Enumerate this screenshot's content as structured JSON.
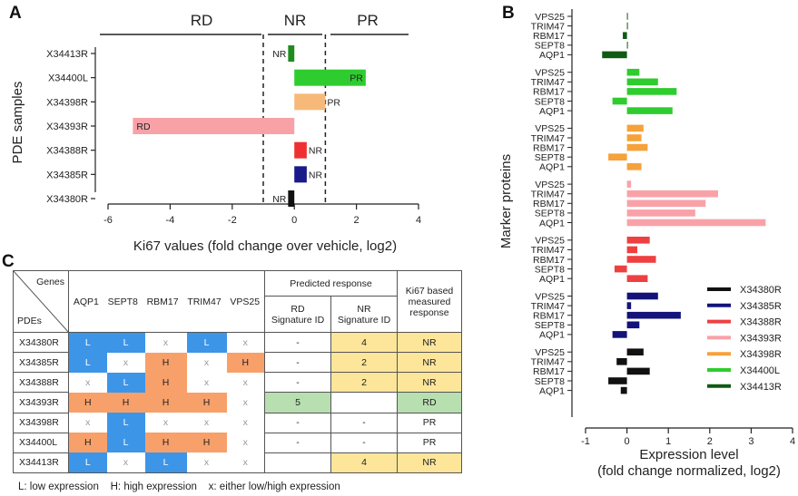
{
  "panels": {
    "a": {
      "letter": "A",
      "regions": [
        "RD",
        "NR",
        "PR"
      ],
      "ylabel": "PDE samples",
      "xlabel": "Ki67 values (fold change over vehicle, log2)"
    },
    "b": {
      "letter": "B",
      "ylabel": "Marker proteins",
      "xlabel_line1": "Expression level",
      "xlabel_line2": "(fold change normalized, log2)"
    },
    "c": {
      "letter": "C",
      "genes_label": "Genes",
      "pdes_label": "PDEs",
      "gene_columns": [
        "AQP1",
        "SEPT8",
        "RBM17",
        "TRIM47",
        "VPS25"
      ],
      "predicted_header": "Predicted response",
      "rd_sig_line1": "RD",
      "rd_sig_line2": "Signature ID",
      "nr_sig_line1": "NR",
      "nr_sig_line2": "Signature ID",
      "ki67_line1": "Ki67 based",
      "ki67_line2": "measured",
      "ki67_line3": "response",
      "legend": "L: low expression    H: high expression    x: either low/high expression"
    }
  },
  "chart_data": [
    {
      "type": "bar",
      "orientation": "horizontal",
      "panel": "A",
      "title": "",
      "categories": [
        "X34413R",
        "X34400L",
        "X34398R",
        "X34393R",
        "X34388R",
        "X34385R",
        "X34380R"
      ],
      "values": [
        -0.2,
        2.3,
        1.0,
        -5.2,
        0.4,
        0.4,
        -0.2
      ],
      "bar_labels": [
        "NR",
        "PR",
        "PR",
        "RD",
        "NR",
        "NR",
        "NR"
      ],
      "colors": [
        "#1e8c1e",
        "#2ecc2e",
        "#f7b97a",
        "#f8a2a8",
        "#f03030",
        "#1a1a88",
        "#111111"
      ],
      "thresholds": [
        -1,
        1
      ],
      "xlabel": "Ki67 values (fold change over vehicle, log2)",
      "ylabel": "PDE samples",
      "xlim": [
        -6,
        4
      ],
      "xticks": [
        -6,
        -4,
        -2,
        0,
        2,
        4
      ]
    },
    {
      "type": "bar",
      "orientation": "horizontal",
      "panel": "B",
      "title": "",
      "categories": [
        "VPS25",
        "TRIM47",
        "RBM17",
        "SEPT8",
        "AQP1"
      ],
      "series": [
        {
          "name": "X34413R",
          "color": "#0f5a14",
          "values": [
            0.0,
            0.0,
            -0.1,
            0.0,
            -0.6
          ]
        },
        {
          "name": "X34400L",
          "color": "#2ecc2e",
          "values": [
            0.3,
            0.75,
            1.2,
            -0.35,
            1.1
          ]
        },
        {
          "name": "X34398R",
          "color": "#f5a23a",
          "values": [
            0.4,
            0.35,
            0.5,
            -0.45,
            0.35
          ]
        },
        {
          "name": "X34393R",
          "color": "#f8a2a8",
          "values": [
            0.1,
            2.2,
            1.9,
            1.65,
            3.35
          ]
        },
        {
          "name": "X34388R",
          "color": "#ee4040",
          "values": [
            0.55,
            0.25,
            0.7,
            -0.3,
            0.5
          ]
        },
        {
          "name": "X34385R",
          "color": "#13137a",
          "values": [
            0.75,
            0.1,
            1.3,
            0.3,
            -0.35
          ]
        },
        {
          "name": "X34380R",
          "color": "#111111",
          "values": [
            0.4,
            -0.25,
            0.55,
            -0.45,
            -0.15
          ]
        }
      ],
      "legend_order": [
        "X34380R",
        "X34385R",
        "X34388R",
        "X34393R",
        "X34398R",
        "X34400L",
        "X34413R"
      ],
      "xlabel": "Expression level (fold change normalized, log2)",
      "ylabel": "Marker proteins",
      "xlim": [
        -1,
        4
      ],
      "xticks": [
        -1,
        0,
        1,
        2,
        3,
        4
      ],
      "legend_position": "right"
    },
    {
      "type": "table",
      "panel": "C",
      "rows": [
        {
          "pde": "X34380R",
          "genes": [
            "L",
            "L",
            "x",
            "L",
            "x"
          ],
          "rd_sig": "-",
          "nr_sig": "4",
          "response": "NR"
        },
        {
          "pde": "X34385R",
          "genes": [
            "L",
            "x",
            "H",
            "x",
            "H"
          ],
          "rd_sig": "-",
          "nr_sig": "2",
          "response": "NR"
        },
        {
          "pde": "X34388R",
          "genes": [
            "x",
            "L",
            "H",
            "x",
            "x"
          ],
          "rd_sig": "-",
          "nr_sig": "2",
          "response": "NR"
        },
        {
          "pde": "X34393R",
          "genes": [
            "H",
            "H",
            "H",
            "H",
            "x"
          ],
          "rd_sig": "5",
          "nr_sig": "",
          "response": "RD"
        },
        {
          "pde": "X34398R",
          "genes": [
            "x",
            "L",
            "x",
            "x",
            "x"
          ],
          "rd_sig": "-",
          "nr_sig": "-",
          "response": "PR"
        },
        {
          "pde": "X34400L",
          "genes": [
            "H",
            "L",
            "H",
            "H",
            "x"
          ],
          "rd_sig": "-",
          "nr_sig": "-",
          "response": "PR"
        },
        {
          "pde": "X34413R",
          "genes": [
            "L",
            "x",
            "L",
            "x",
            "x"
          ],
          "rd_sig": "",
          "nr_sig": "4",
          "response": "NR"
        }
      ]
    }
  ]
}
